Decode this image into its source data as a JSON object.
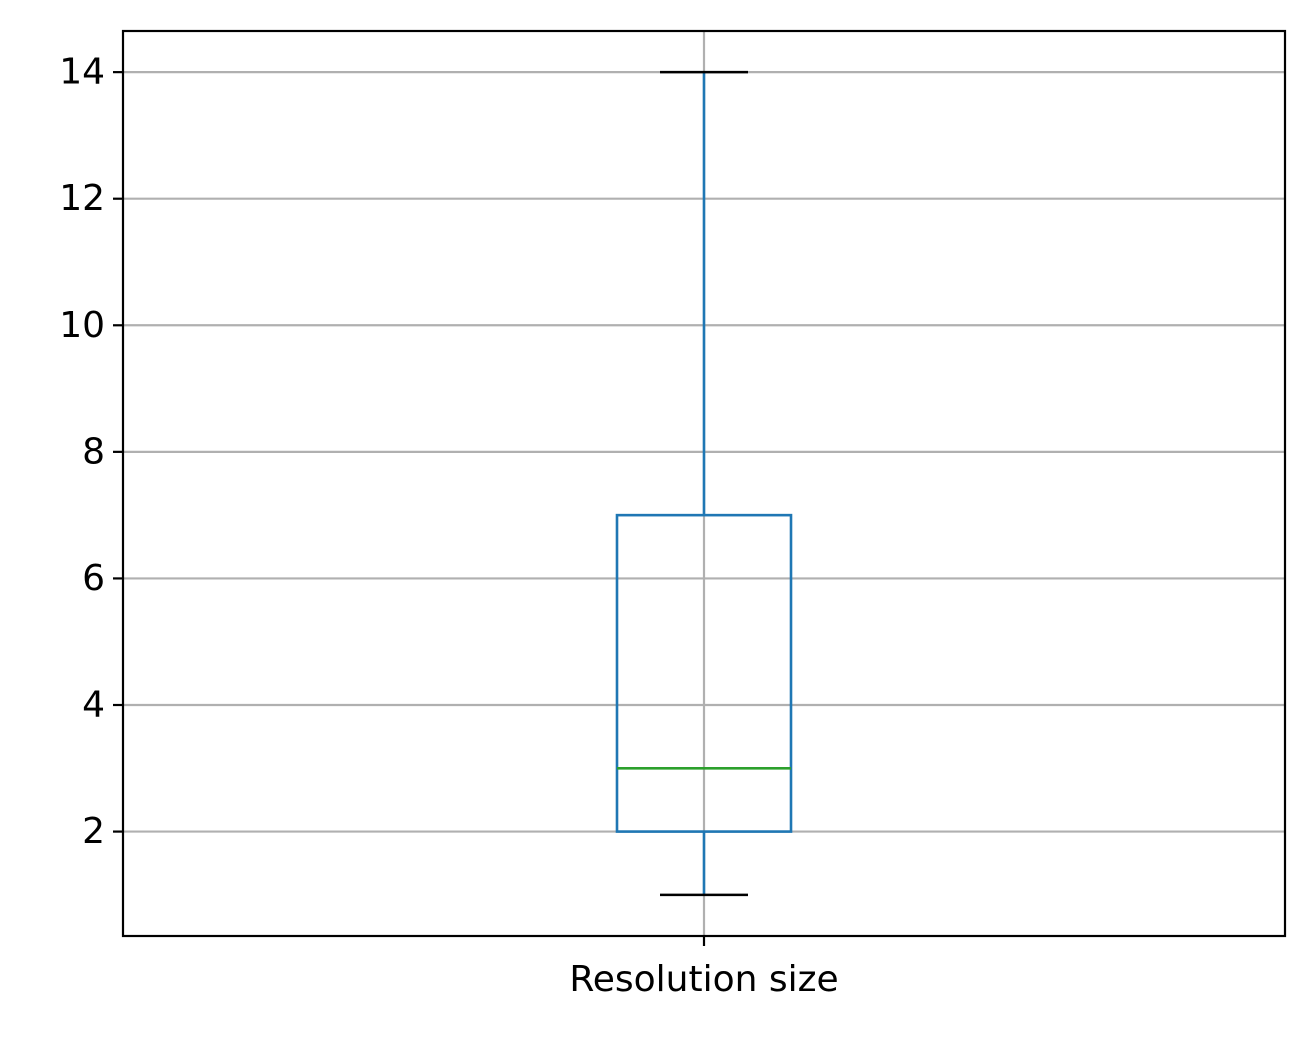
{
  "chart_data": {
    "type": "boxplot",
    "categories": [
      "Resolution size"
    ],
    "boxes": [
      {
        "whisker_low": 1,
        "q1": 2,
        "median": 3,
        "q3": 7,
        "whisker_high": 14
      }
    ],
    "title": "",
    "xlabel": "",
    "ylabel": "",
    "ylim": [
      0.35,
      14.65
    ],
    "yticks": [
      2,
      4,
      6,
      8,
      10,
      12,
      14
    ],
    "grid": true,
    "legend": "none",
    "colors": {
      "box": "#1f77b4",
      "median": "#2ca02c",
      "whisker_cap": "#000000",
      "grid": "#b0b0b0",
      "frame": "#000000"
    }
  }
}
